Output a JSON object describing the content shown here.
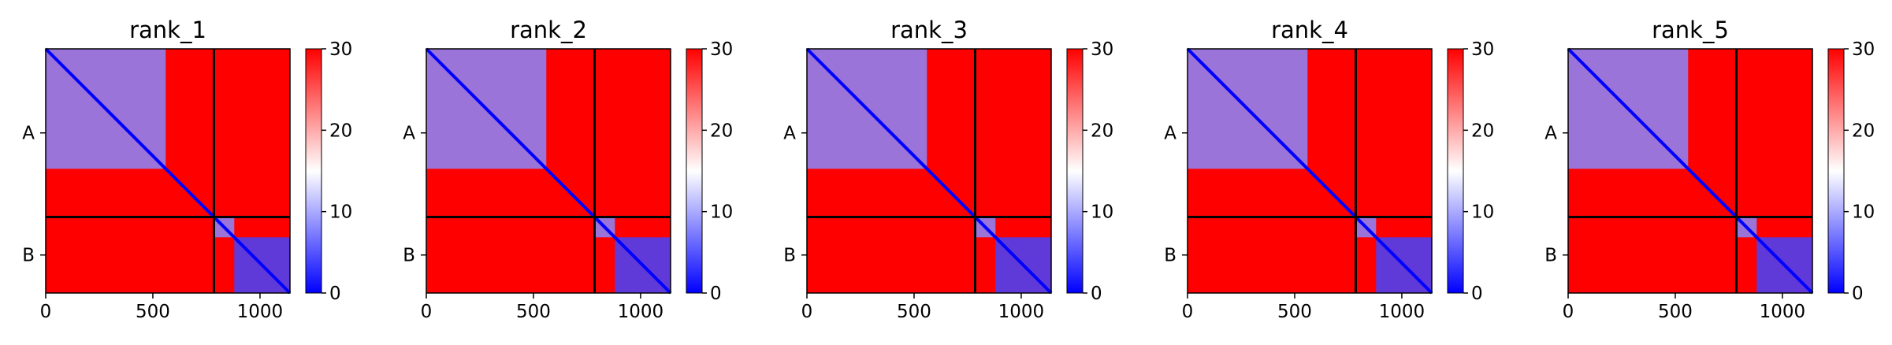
{
  "chart_data": [
    {
      "type": "heatmap",
      "title": "rank_1",
      "x_ticks": [
        0,
        500,
        1000
      ],
      "y_tick_labels": [
        "A",
        "B"
      ],
      "chain_boundary": 785,
      "length": 1140,
      "colorbar": {
        "min": 0,
        "max": 30,
        "ticks": [
          0,
          10,
          20,
          30
        ],
        "colors": [
          "#0000ff",
          "#ffffff",
          "#ff0000"
        ]
      },
      "blocks": [
        {
          "x": [
            0,
            560
          ],
          "y": [
            0,
            560
          ],
          "value": 8
        },
        {
          "x": [
            785,
            880
          ],
          "y": [
            785,
            880
          ],
          "value": 8
        },
        {
          "x": [
            880,
            1140
          ],
          "y": [
            880,
            1140
          ],
          "value": 4
        }
      ]
    },
    {
      "type": "heatmap",
      "title": "rank_2",
      "x_ticks": [
        0,
        500,
        1000
      ],
      "y_tick_labels": [
        "A",
        "B"
      ],
      "chain_boundary": 785,
      "length": 1140,
      "colorbar": {
        "min": 0,
        "max": 30,
        "ticks": [
          0,
          10,
          20,
          30
        ],
        "colors": [
          "#0000ff",
          "#ffffff",
          "#ff0000"
        ]
      },
      "blocks": [
        {
          "x": [
            0,
            560
          ],
          "y": [
            0,
            560
          ],
          "value": 8
        },
        {
          "x": [
            785,
            880
          ],
          "y": [
            785,
            880
          ],
          "value": 8
        },
        {
          "x": [
            880,
            1140
          ],
          "y": [
            880,
            1140
          ],
          "value": 4
        }
      ]
    },
    {
      "type": "heatmap",
      "title": "rank_3",
      "x_ticks": [
        0,
        500,
        1000
      ],
      "y_tick_labels": [
        "A",
        "B"
      ],
      "chain_boundary": 785,
      "length": 1140,
      "colorbar": {
        "min": 0,
        "max": 30,
        "ticks": [
          0,
          10,
          20,
          30
        ],
        "colors": [
          "#0000ff",
          "#ffffff",
          "#ff0000"
        ]
      },
      "blocks": [
        {
          "x": [
            0,
            560
          ],
          "y": [
            0,
            560
          ],
          "value": 8
        },
        {
          "x": [
            785,
            880
          ],
          "y": [
            785,
            880
          ],
          "value": 8
        },
        {
          "x": [
            880,
            1140
          ],
          "y": [
            880,
            1140
          ],
          "value": 4
        }
      ]
    },
    {
      "type": "heatmap",
      "title": "rank_4",
      "x_ticks": [
        0,
        500,
        1000
      ],
      "y_tick_labels": [
        "A",
        "B"
      ],
      "chain_boundary": 785,
      "length": 1140,
      "colorbar": {
        "min": 0,
        "max": 30,
        "ticks": [
          0,
          10,
          20,
          30
        ],
        "colors": [
          "#0000ff",
          "#ffffff",
          "#ff0000"
        ]
      },
      "blocks": [
        {
          "x": [
            0,
            560
          ],
          "y": [
            0,
            560
          ],
          "value": 8
        },
        {
          "x": [
            785,
            880
          ],
          "y": [
            785,
            880
          ],
          "value": 8
        },
        {
          "x": [
            880,
            1140
          ],
          "y": [
            880,
            1140
          ],
          "value": 4
        }
      ]
    },
    {
      "type": "heatmap",
      "title": "rank_5",
      "x_ticks": [
        0,
        500,
        1000
      ],
      "y_tick_labels": [
        "A",
        "B"
      ],
      "chain_boundary": 785,
      "length": 1140,
      "colorbar": {
        "min": 0,
        "max": 30,
        "ticks": [
          0,
          10,
          20,
          30
        ],
        "colors": [
          "#0000ff",
          "#ffffff",
          "#ff0000"
        ]
      },
      "blocks": [
        {
          "x": [
            0,
            560
          ],
          "y": [
            0,
            560
          ],
          "value": 8
        },
        {
          "x": [
            785,
            880
          ],
          "y": [
            785,
            880
          ],
          "value": 8
        },
        {
          "x": [
            880,
            1140
          ],
          "y": [
            880,
            1140
          ],
          "value": 4
        }
      ]
    }
  ]
}
